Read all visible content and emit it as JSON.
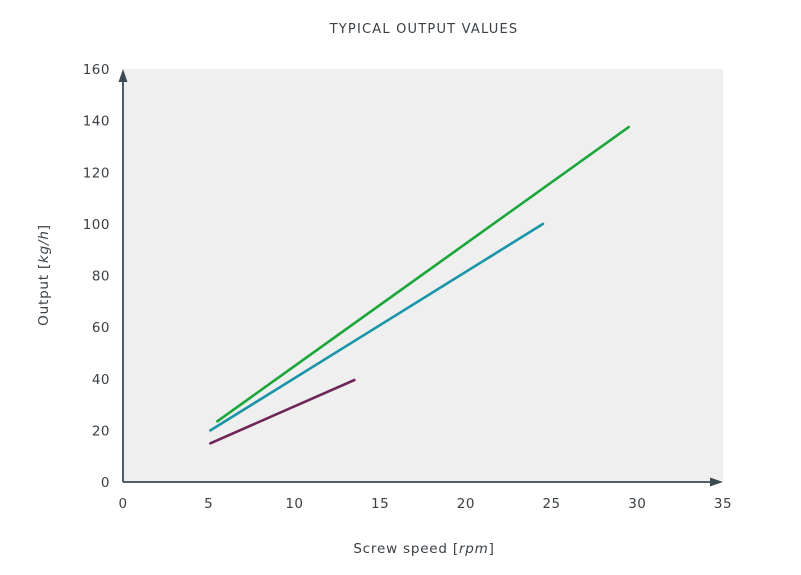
{
  "chart_data": {
    "type": "line",
    "title": "TYPICAL OUTPUT VALUES",
    "xlabel": "Screw speed [rpm]",
    "xlabel_parts": {
      "text": "Screw speed [",
      "unit": "rpm",
      "end": "]"
    },
    "ylabel": "Output [kg/h]",
    "ylabel_parts": {
      "text": "Output [",
      "unit": "kg/h",
      "end": "]"
    },
    "xlim": [
      0,
      35
    ],
    "ylim": [
      0,
      160
    ],
    "x_ticks": [
      "0",
      "5",
      "10",
      "15",
      "20",
      "25",
      "30",
      "35"
    ],
    "y_ticks": [
      "0",
      "20",
      "40",
      "60",
      "80",
      "100",
      "120",
      "140",
      "160"
    ],
    "grid": false,
    "legend": null,
    "background": "#efefef",
    "series": [
      {
        "name": "green",
        "color": "#1aa63a",
        "points": [
          [
            5.5,
            23.5
          ],
          [
            29.5,
            137.5
          ]
        ]
      },
      {
        "name": "teal",
        "color": "#1a95a8",
        "points": [
          [
            5.1,
            20
          ],
          [
            24.5,
            100
          ]
        ]
      },
      {
        "name": "purple",
        "color": "#6e2557",
        "points": [
          [
            5.1,
            15
          ],
          [
            13.5,
            39.5
          ]
        ]
      }
    ]
  }
}
